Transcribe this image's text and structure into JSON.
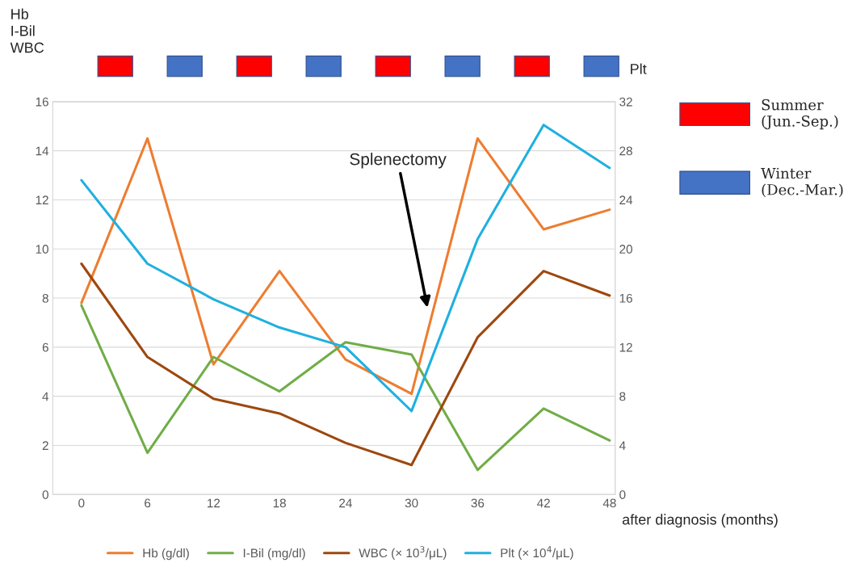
{
  "chart_data": {
    "type": "line",
    "ylabel": "Hb\nI-Bil\nWBC",
    "y2label": "Plt",
    "xlabel": "after diagnosis (months)",
    "x": [
      0,
      6,
      12,
      18,
      24,
      30,
      36,
      42,
      48
    ],
    "series": [
      {
        "name": "Hb (g/dl)",
        "color": "#ed7d31",
        "values": [
          7.8,
          14.5,
          5.3,
          9.1,
          5.5,
          4.1,
          14.5,
          10.8,
          11.6
        ]
      },
      {
        "name": "I-Bil (mg/dl)",
        "color": "#70ad47",
        "values": [
          7.7,
          1.7,
          5.6,
          4.2,
          6.2,
          5.7,
          1.0,
          3.5,
          2.2
        ]
      },
      {
        "name": "WBC (× 10$^{3}$/μL)",
        "color": "#9e480e",
        "values": [
          9.4,
          5.6,
          3.9,
          3.3,
          2.1,
          1.2,
          6.4,
          9.1,
          8.1
        ]
      },
      {
        "name": "Plt (× 10$^{4}$/μL)",
        "color": "#1fb0e0",
        "axis": "y2",
        "values": [
          25.6,
          18.8,
          15.9,
          13.6,
          12.0,
          6.8,
          20.8,
          30.1,
          26.6
        ]
      }
    ],
    "xlim": [
      -2.6,
      48.5
    ],
    "xticks": [
      0,
      6,
      12,
      18,
      24,
      30,
      36,
      42,
      48
    ],
    "ylim": [
      0,
      16
    ],
    "yticks": [
      0,
      2,
      4,
      6,
      8,
      10,
      12,
      14,
      16
    ],
    "y2lim": [
      0,
      32
    ],
    "y2ticks": [
      0,
      4,
      8,
      12,
      16,
      20,
      24,
      28,
      32
    ],
    "grid": "y",
    "legend": "bottom",
    "marker": "none",
    "line_style": "solid",
    "annotations": [
      "Splenectomy",
      "Summer\n(Jun.-Sep.)",
      "Winter\n(Dec.-Mar.)"
    ]
  }
}
